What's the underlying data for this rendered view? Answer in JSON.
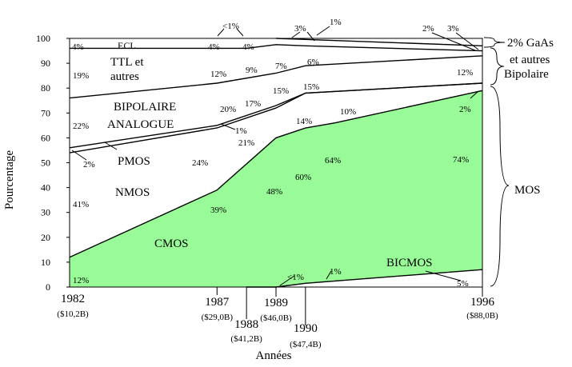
{
  "chart_data": {
    "type": "area",
    "title": "",
    "xlabel": "Années",
    "ylabel": "Pourcentage",
    "ylim": [
      0,
      100
    ],
    "xlim": [
      1982,
      1996
    ],
    "yticks": [
      "0",
      "10",
      "20",
      "30",
      "40",
      "50",
      "60",
      "70",
      "80",
      "90",
      "100"
    ],
    "x_ticks": [
      {
        "x": 1982,
        "year": "1982",
        "value": "($10,2B)"
      },
      {
        "x": 1987,
        "year": "1987",
        "value": "($29,0B)"
      },
      {
        "x": 1988,
        "year": "1988",
        "value": "($41,2B)"
      },
      {
        "x": 1989,
        "year": "1989",
        "value": "($46,0B)"
      },
      {
        "x": 1990,
        "year": "1990",
        "value": "($47,4B)"
      },
      {
        "x": 1996,
        "year": "1996",
        "value": "($88,0B)"
      }
    ],
    "boundaries": [
      {
        "id": "bicmos_top",
        "points": [
          [
            1988,
            0
          ],
          [
            1989,
            0
          ],
          [
            1990,
            1.5
          ],
          [
            1996,
            7
          ]
        ]
      },
      {
        "id": "cmos_top",
        "points": [
          [
            1982,
            12
          ],
          [
            1987,
            39
          ],
          [
            1989,
            60
          ],
          [
            1990,
            64
          ],
          [
            1991,
            66
          ],
          [
            1996,
            79
          ]
        ]
      },
      {
        "id": "mos_top",
        "points": [
          [
            1982,
            54
          ],
          [
            1987,
            64
          ],
          [
            1989,
            72
          ],
          [
            1990,
            78
          ],
          [
            1996,
            82
          ]
        ]
      },
      {
        "id": "bipolar_analog_top",
        "points": [
          [
            1982,
            56
          ],
          [
            1987,
            65
          ],
          [
            1989,
            73
          ],
          [
            1990,
            78
          ],
          [
            1996,
            82
          ]
        ]
      },
      {
        "id": "ttl_top",
        "points": [
          [
            1982,
            76
          ],
          [
            1987,
            82
          ],
          [
            1989,
            86
          ],
          [
            1990,
            89
          ],
          [
            1996,
            93
          ]
        ]
      },
      {
        "id": "ecl_top",
        "points": [
          [
            1982,
            96
          ],
          [
            1987,
            96
          ],
          [
            1988,
            96
          ],
          [
            1989,
            97.5
          ],
          [
            1990,
            97
          ],
          [
            1996,
            95
          ]
        ]
      },
      {
        "id": "gaas_top",
        "points": [
          [
            1989,
            100
          ],
          [
            1996,
            97
          ]
        ]
      }
    ],
    "categories": [
      "CMOS",
      "NMOS",
      "PMOS",
      "BIPOLAIRE ANALOGUE",
      "TTL et autres",
      "ECL",
      "BICMOS"
    ],
    "category_labels": {
      "cmos": "CMOS",
      "nmos": "NMOS",
      "pmos": "PMOS",
      "bipolar_line1": "BIPOLAIRE",
      "bipolar_line2": "ANALOGUE",
      "ttl_line1": "TTL et",
      "ttl_line2": "autres",
      "ecl": "ECL",
      "bicmos": "BICMOS"
    },
    "annotations": {
      "cmos": [
        "12%",
        "39%",
        "48%",
        "60%",
        "64%",
        "74%"
      ],
      "nmos": [
        "41%",
        "24%",
        "21%",
        "14%",
        "10%",
        "2%"
      ],
      "pmos": [
        "2%",
        "1%"
      ],
      "bipolar_analog": [
        "22%",
        "20%",
        "17%",
        "15%",
        "15%"
      ],
      "ttl": [
        "19%",
        "12%",
        "9%",
        "7%",
        "6%",
        "12%"
      ],
      "ecl": [
        "4%",
        "4%",
        "4%"
      ],
      "gaas": [
        "<1%",
        "3%",
        "1%",
        "2%",
        "3%"
      ],
      "bicmos": [
        "<1%",
        "1%",
        "5%"
      ]
    },
    "side_labels": {
      "gaas_line1": "2% GaAs",
      "gaas_line2": "et autres",
      "gaas_line3": "Bipolaire",
      "mos": "MOS"
    },
    "colors": {
      "cmos_fill": "#98fb98",
      "line": "#000000",
      "background": "#ffffff"
    },
    "grid": false
  }
}
